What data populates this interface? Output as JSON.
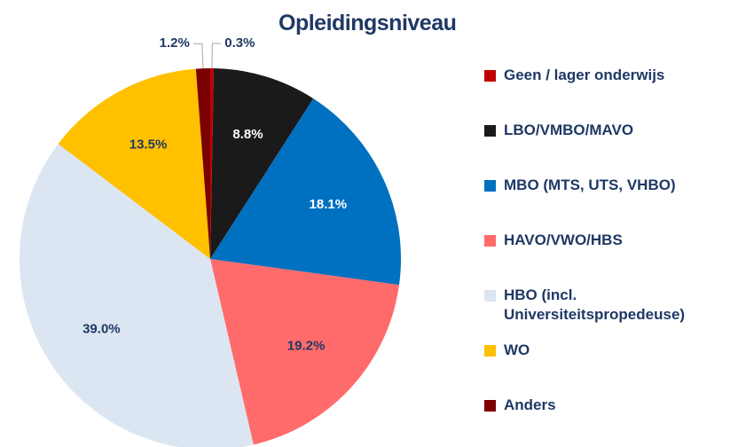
{
  "chart_data": {
    "type": "pie",
    "title": "Opleidingsniveau",
    "categories": [
      "Geen / lager onderwijs",
      "LBO/VMBO/MAVO",
      "MBO (MTS, UTS, VHBO)",
      "HAVO/VWO/HBS",
      "HBO (incl. Universiteitspropedeuse)",
      "WO",
      "Anders"
    ],
    "values": [
      0.3,
      8.8,
      18.1,
      19.2,
      39.0,
      13.5,
      1.2
    ],
    "value_labels": [
      "0.3%",
      "8.8%",
      "18.1%",
      "19.2%",
      "39.0%",
      "13.5%",
      "1.2%"
    ],
    "colors": [
      "#c00000",
      "#1a1a1a",
      "#0070c0",
      "#ff6b6b",
      "#dce6f2",
      "#ffc000",
      "#7b0000"
    ],
    "legend": "right"
  }
}
